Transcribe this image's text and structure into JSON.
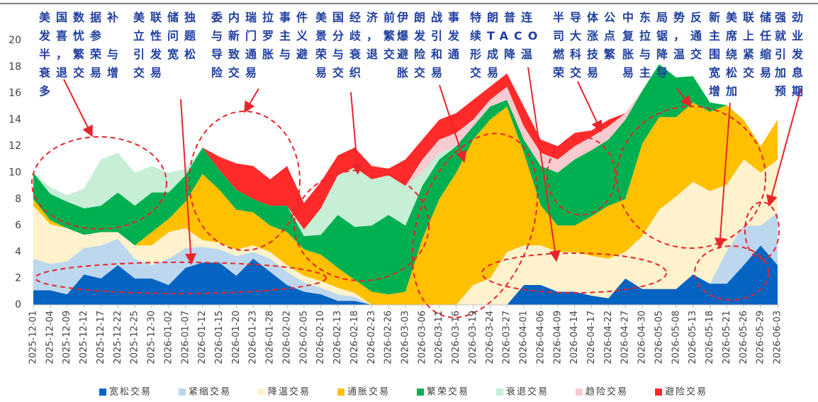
{
  "chart_data": {
    "type": "stacked_area",
    "categories": [
      "2025-12-01",
      "2025-12-04",
      "2025-12-09",
      "2025-12-12",
      "2025-12-17",
      "2025-12-22",
      "2025-12-25",
      "2025-12-30",
      "2026-01-02",
      "2026-01-07",
      "2026-01-12",
      "2026-01-15",
      "2026-01-20",
      "2026-01-23",
      "2026-01-28",
      "2026-02-02",
      "2026-02-05",
      "2026-02-10",
      "2026-02-13",
      "2026-02-18",
      "2026-02-23",
      "2026-02-26",
      "2026-03-03",
      "2026-03-06",
      "2026-03-11",
      "2026-03-16",
      "2026-03-19",
      "2026-03-24",
      "2026-03-27",
      "2026-04-01",
      "2026-04-06",
      "2026-04-09",
      "2026-04-14",
      "2026-04-17",
      "2026-04-22",
      "2026-04-27",
      "2026-04-30",
      "2026-05-05",
      "2026-05-08",
      "2026-05-13",
      "2026-05-18",
      "2026-05-21",
      "2026-05-26",
      "2026-05-29",
      "2026-06-03"
    ],
    "series": [
      {
        "name": "宽松交易",
        "color": "#0563c1",
        "values": [
          1.1,
          1.1,
          0.8,
          2.3,
          2,
          3,
          2,
          2,
          1.5,
          2.8,
          3.2,
          3.2,
          2.2,
          3.5,
          2.5,
          1.5,
          1,
          0.8,
          0.3,
          0.3,
          0,
          0,
          0,
          0,
          0,
          0,
          0,
          0,
          0,
          1.5,
          1.5,
          1,
          1,
          0.7,
          0.5,
          2,
          1.2,
          1.2,
          1.2,
          2.3,
          1.6,
          1.6,
          3,
          4.5,
          3
        ]
      },
      {
        "name": "紧缩交易",
        "color": "#bdd7ee",
        "values": [
          2.4,
          2,
          2.5,
          2,
          2.5,
          2,
          1.5,
          1,
          2,
          1.5,
          1.2,
          1,
          1.5,
          0.5,
          1,
          1,
          0.7,
          0.5,
          0.5,
          0.3,
          0,
          0,
          0,
          0,
          0,
          0,
          0,
          0,
          0,
          0,
          0,
          0,
          0,
          0,
          0,
          0,
          0,
          0,
          0,
          0,
          0,
          2.5,
          3,
          1.5,
          4
        ]
      },
      {
        "name": "降温交易",
        "color": "#fff2cc",
        "values": [
          4,
          3,
          2.5,
          1,
          1,
          0.5,
          1,
          1.5,
          2,
          1.5,
          0.5,
          0.5,
          0.5,
          0.5,
          0.5,
          0.5,
          0.5,
          0.5,
          0.5,
          0.3,
          0,
          0,
          0,
          0,
          0,
          0,
          1.5,
          2,
          4,
          3,
          3,
          3,
          3,
          3,
          3,
          2,
          4,
          6,
          7,
          7,
          7,
          5,
          5,
          4,
          4
        ]
      },
      {
        "name": "通胀交易",
        "color": "#ffc000",
        "values": [
          0.5,
          0.3,
          0,
          0,
          0,
          0,
          0,
          1,
          1,
          2,
          5,
          4,
          3,
          2.5,
          2,
          2.5,
          2,
          2,
          1.5,
          1,
          1,
          0.8,
          1,
          5,
          8,
          10,
          11,
          12,
          11,
          7,
          3,
          2,
          2,
          3,
          4,
          4,
          7,
          7,
          6,
          6,
          6,
          6,
          3,
          2,
          3
        ]
      },
      {
        "name": "繁荣交易",
        "color": "#00b050",
        "values": [
          2,
          2,
          2,
          2,
          2,
          3,
          3,
          3,
          2,
          2,
          2,
          1.5,
          1.5,
          1,
          1.5,
          2,
          1,
          1.5,
          4,
          4,
          5,
          6,
          5,
          4,
          3,
          2,
          1,
          1,
          0.5,
          1,
          3,
          4,
          5,
          5,
          5,
          6,
          4,
          4,
          3,
          2,
          0.7,
          0,
          0,
          0,
          0
        ]
      },
      {
        "name": "衰退交易",
        "color": "#c6efd6",
        "values": [
          0,
          0.5,
          0.5,
          1.5,
          3.5,
          3,
          2.5,
          2,
          1.5,
          0.5,
          0,
          0,
          0,
          0,
          0,
          0,
          0.5,
          2,
          3,
          4.5,
          3.5,
          3,
          3,
          1,
          0.5,
          0,
          0,
          0,
          0,
          0,
          0,
          0,
          0,
          0,
          0,
          0,
          0,
          0,
          0,
          0,
          0,
          0,
          0,
          0,
          0
        ]
      },
      {
        "name": "趋险交易",
        "color": "#f8cbd0",
        "values": [
          0,
          0,
          0,
          0,
          0,
          0,
          0,
          0,
          0,
          0,
          0,
          0,
          0,
          0,
          0,
          0,
          0,
          0,
          0,
          0,
          0,
          0,
          0,
          1,
          1,
          1,
          0.5,
          0.5,
          1,
          1,
          1,
          1,
          1,
          1,
          1,
          0.5,
          0,
          0,
          0,
          0,
          0,
          0,
          0,
          0,
          0
        ]
      },
      {
        "name": "避险交易",
        "color": "#ff2b2b",
        "values": [
          0,
          0,
          0,
          0,
          0,
          0,
          0,
          0,
          0,
          0,
          0,
          1,
          2,
          2.5,
          2,
          3,
          2,
          2,
          1.5,
          1.5,
          1,
          0.5,
          2,
          1.5,
          1.5,
          1.5,
          1.5,
          1,
          1,
          1.5,
          1,
          1,
          1,
          0.5,
          0.5,
          0,
          0,
          0,
          0,
          0,
          0,
          0,
          0,
          0,
          0
        ]
      }
    ],
    "ylim": [
      0,
      20
    ],
    "yticks": [
      0,
      2,
      4,
      6,
      8,
      10,
      12,
      14,
      16,
      18,
      20
    ],
    "annotations": [
      "美国数据补发喜忧参半，繁荣与衰退交易增多",
      "美联储独立性问题引发宽松交易",
      "委内瑞拉事件与新门罗主义导致通胀与避险交易",
      "美国经济前景分歧，繁荣与衰退交易交织",
      "伊朗战事爆发引发避险和通胀交易",
      "特朗普连续TACO 形成降温交易",
      "半导体公司大涨点燃科技繁荣交易",
      "中东局势反复拉锯，通胀与降温交易主导",
      "新美联储主席上任围绕紧缩宽松交易增加",
      "强劲就业引发加息预期"
    ]
  }
}
